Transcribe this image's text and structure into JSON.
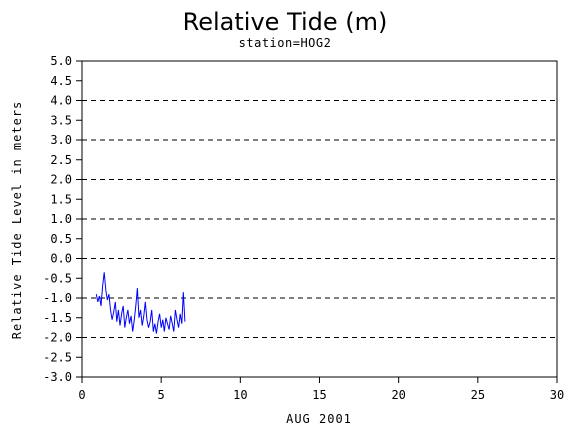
{
  "chart_data": {
    "type": "line",
    "title": "Relative Tide (m)",
    "subtitle": "station=HOG2",
    "xlabel": "AUG 2001",
    "ylabel": "Relative Tide Level in meters",
    "xlim": [
      0,
      30
    ],
    "ylim": [
      -3.0,
      5.0
    ],
    "xticks": [
      0,
      5,
      10,
      15,
      20,
      25,
      30
    ],
    "yticks": [
      5.0,
      4.5,
      4.0,
      3.5,
      3.0,
      2.5,
      2.0,
      1.5,
      1.0,
      0.5,
      0.0,
      -0.5,
      -1.0,
      -1.5,
      -2.0,
      -2.5,
      -3.0
    ],
    "ytick_labels": [
      "5.0",
      "4.5",
      "4.0",
      "3.5",
      "3.0",
      "2.5",
      "2.0",
      "1.5",
      "1.0",
      "0.5",
      "0.0",
      "-0.5",
      "-1.0",
      "-1.5",
      "-2.0",
      "-2.5",
      "-3.0"
    ],
    "dashed_gridlines_at": [
      5.0,
      4.0,
      3.0,
      2.0,
      1.0,
      0.0,
      -1.0,
      -2.0,
      -3.0
    ],
    "grid": "horizontal dashed at whole meters",
    "series_color": "#0000ff",
    "series": [
      {
        "x": [
          0.9,
          1.0,
          1.1,
          1.2,
          1.3,
          1.4,
          1.5,
          1.6,
          1.7,
          1.8,
          1.9,
          2.0,
          2.1,
          2.2,
          2.3,
          2.4,
          2.5,
          2.6,
          2.7,
          2.8,
          2.9,
          3.0,
          3.1,
          3.2,
          3.3,
          3.4,
          3.5,
          3.6,
          3.7,
          3.8,
          3.9,
          4.0,
          4.1,
          4.2,
          4.3,
          4.4,
          4.5,
          4.6,
          4.7,
          4.8,
          4.9,
          5.0,
          5.1,
          5.2,
          5.3,
          5.4,
          5.5,
          5.6,
          5.7,
          5.8,
          5.9,
          6.0,
          6.1,
          6.2,
          6.3,
          6.4,
          6.5
        ],
        "values": [
          -0.9,
          -1.1,
          -0.95,
          -1.2,
          -0.7,
          -0.35,
          -0.8,
          -1.05,
          -0.9,
          -1.3,
          -1.55,
          -1.35,
          -1.1,
          -1.6,
          -1.3,
          -1.7,
          -1.4,
          -1.2,
          -1.75,
          -1.5,
          -1.3,
          -1.65,
          -1.45,
          -1.85,
          -1.55,
          -1.2,
          -0.75,
          -1.5,
          -1.3,
          -1.7,
          -1.45,
          -1.1,
          -1.55,
          -1.75,
          -1.6,
          -1.3,
          -1.85,
          -1.65,
          -1.9,
          -1.6,
          -1.4,
          -1.75,
          -1.55,
          -1.85,
          -1.5,
          -1.65,
          -1.8,
          -1.45,
          -1.65,
          -1.85,
          -1.3,
          -1.55,
          -1.75,
          -1.4,
          -1.65,
          -0.85,
          -1.6
        ]
      }
    ]
  }
}
